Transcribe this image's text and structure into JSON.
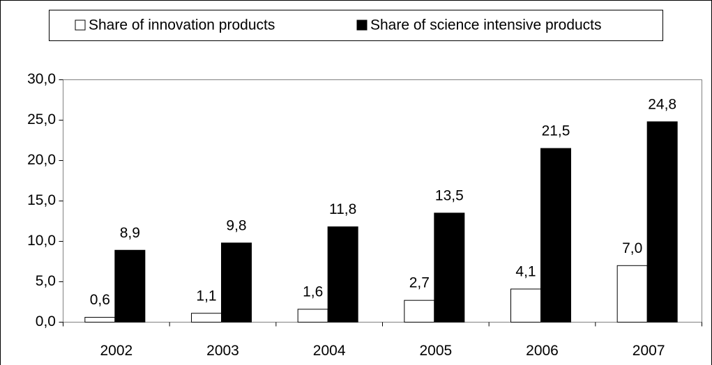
{
  "chart_data": {
    "type": "bar",
    "categories": [
      "2002",
      "2003",
      "2004",
      "2005",
      "2006",
      "2007"
    ],
    "series": [
      {
        "name": "Share of innovation products",
        "color": "#ffffff",
        "values": [
          0.6,
          1.1,
          1.6,
          2.7,
          4.1,
          7.0
        ],
        "value_labels": [
          "0,6",
          "1,1",
          "1,6",
          "2,7",
          "4,1",
          "7,0"
        ]
      },
      {
        "name": "Share of science intensive products",
        "color": "#000000",
        "values": [
          8.9,
          9.8,
          11.8,
          13.5,
          21.5,
          24.8
        ],
        "value_labels": [
          "8,9",
          "9,8",
          "11,8",
          "13,5",
          "21,5",
          "24,8"
        ]
      }
    ],
    "ylim": [
      0,
      30
    ],
    "yticks": [
      {
        "value": 0,
        "label": "0,0"
      },
      {
        "value": 5,
        "label": "5,0"
      },
      {
        "value": 10,
        "label": "10,0"
      },
      {
        "value": 15,
        "label": "15,0"
      },
      {
        "value": 20,
        "label": "20,0"
      },
      {
        "value": 25,
        "label": "25,0"
      },
      {
        "value": 30,
        "label": "30,0"
      }
    ],
    "grid": false,
    "legend": "top"
  }
}
